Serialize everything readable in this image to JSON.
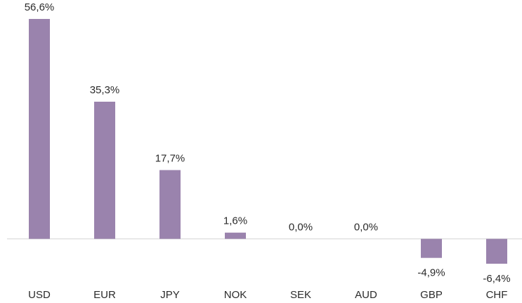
{
  "chart_data": {
    "type": "bar",
    "categories": [
      "USD",
      "EUR",
      "JPY",
      "NOK",
      "SEK",
      "AUD",
      "GBP",
      "CHF"
    ],
    "values": [
      56.6,
      35.3,
      17.7,
      1.6,
      0.0,
      0.0,
      -4.9,
      -6.4
    ],
    "value_labels": [
      "56,6%",
      "35,3%",
      "17,7%",
      "1,6%",
      "0,0%",
      "0,0%",
      "-4,9%",
      "-6,4%"
    ],
    "color": "#9a83ad"
  }
}
